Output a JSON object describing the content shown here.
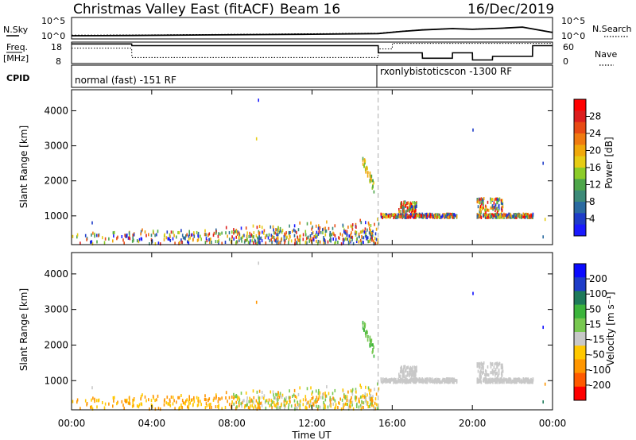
{
  "header": {
    "title": "Christmas Valley East (fitACF)",
    "beam": "Beam 16",
    "date": "16/Dec/2019"
  },
  "colors": {
    "noise_sky": "#000000",
    "noise_search": "#000000",
    "power_scale": [
      "#1a1aff",
      "#1e3cc8",
      "#2a6aa0",
      "#3c8a78",
      "#4ea64a",
      "#8ccc28",
      "#e6cc14",
      "#f0a80a",
      "#f07a10",
      "#e84a14",
      "#dc1e1e",
      "#ff0000"
    ],
    "velocity_scale": [
      "#ff0000",
      "#ff5a00",
      "#ff9600",
      "#ffc800",
      "#c8c8c8",
      "#78c850",
      "#3cb43c",
      "#1e7a5a",
      "#1e3cc8",
      "#0a0aff"
    ]
  },
  "panels": {
    "noise": {
      "left_label": "N.Sky",
      "right_label": "N.Search",
      "left_ticks": [
        "10^5",
        "10^0"
      ],
      "right_ticks": [
        "10^5",
        "10^0"
      ]
    },
    "freq": {
      "left_label_top": "Freq.",
      "left_label_unit": "[MHz]",
      "left_ticks": [
        "18",
        "8"
      ],
      "right_ticks": [
        "60",
        "0"
      ],
      "right_label": "Nave"
    },
    "cpid": {
      "label": "CPID",
      "segments": [
        {
          "text": "normal (fast) -151 RF"
        },
        {
          "text": "rxonlybistoticscon -1300 RF"
        }
      ]
    },
    "power": {
      "ylabel": "Slant Range [km]",
      "yticks": [
        "4000",
        "3000",
        "2000",
        "1000"
      ],
      "colorbar_label": "Power [dB]",
      "colorbar_ticks": [
        "28",
        "24",
        "20",
        "16",
        "12",
        "8",
        "4"
      ]
    },
    "velocity": {
      "ylabel": "Slant Range [km]",
      "yticks": [
        "4000",
        "3000",
        "2000",
        "1000"
      ],
      "colorbar_label": "Velocity [m s⁻¹]",
      "colorbar_ticks": [
        "200",
        "100",
        "50",
        "15",
        "-15",
        "-50",
        "-100",
        "-200"
      ]
    }
  },
  "xaxis": {
    "label": "Time UT",
    "ticks": [
      "00:00",
      "04:00",
      "08:00",
      "12:00",
      "16:00",
      "20:00",
      "00:00"
    ]
  },
  "chart_data": {
    "type": "heatmap",
    "x_range_hours": [
      0,
      24
    ],
    "y_range_km": [
      180,
      4600
    ],
    "mode_change_hour": 15.3,
    "noise_sky_level": [
      [
        0,
        0.15
      ],
      [
        3,
        0.16
      ],
      [
        6,
        0.18
      ],
      [
        9,
        0.2
      ],
      [
        12,
        0.22
      ],
      [
        15.3,
        0.25
      ],
      [
        16.5,
        0.35
      ],
      [
        17.5,
        0.42
      ],
      [
        19,
        0.48
      ],
      [
        20,
        0.45
      ],
      [
        21.5,
        0.5
      ],
      [
        22.5,
        0.55
      ],
      [
        24,
        0.3
      ]
    ],
    "freq_mhz": [
      [
        0,
        15.2
      ],
      [
        3,
        15.2
      ],
      [
        3.01,
        10.8
      ],
      [
        15.3,
        10.8
      ],
      [
        15.31,
        14.8
      ],
      [
        16,
        14.8
      ],
      [
        16.01,
        17.4
      ],
      [
        24,
        17.4
      ]
    ],
    "nave": [
      [
        0,
        55
      ],
      [
        3,
        55
      ],
      [
        3.01,
        50
      ],
      [
        15.3,
        50
      ],
      [
        15.31,
        30
      ],
      [
        17.5,
        30
      ],
      [
        17.51,
        15
      ],
      [
        19,
        15
      ],
      [
        19.01,
        30
      ],
      [
        20,
        30
      ],
      [
        20.01,
        10
      ],
      [
        21,
        10
      ],
      [
        21.01,
        20
      ],
      [
        23,
        20
      ],
      [
        23.01,
        50
      ],
      [
        24,
        50
      ]
    ]
  }
}
